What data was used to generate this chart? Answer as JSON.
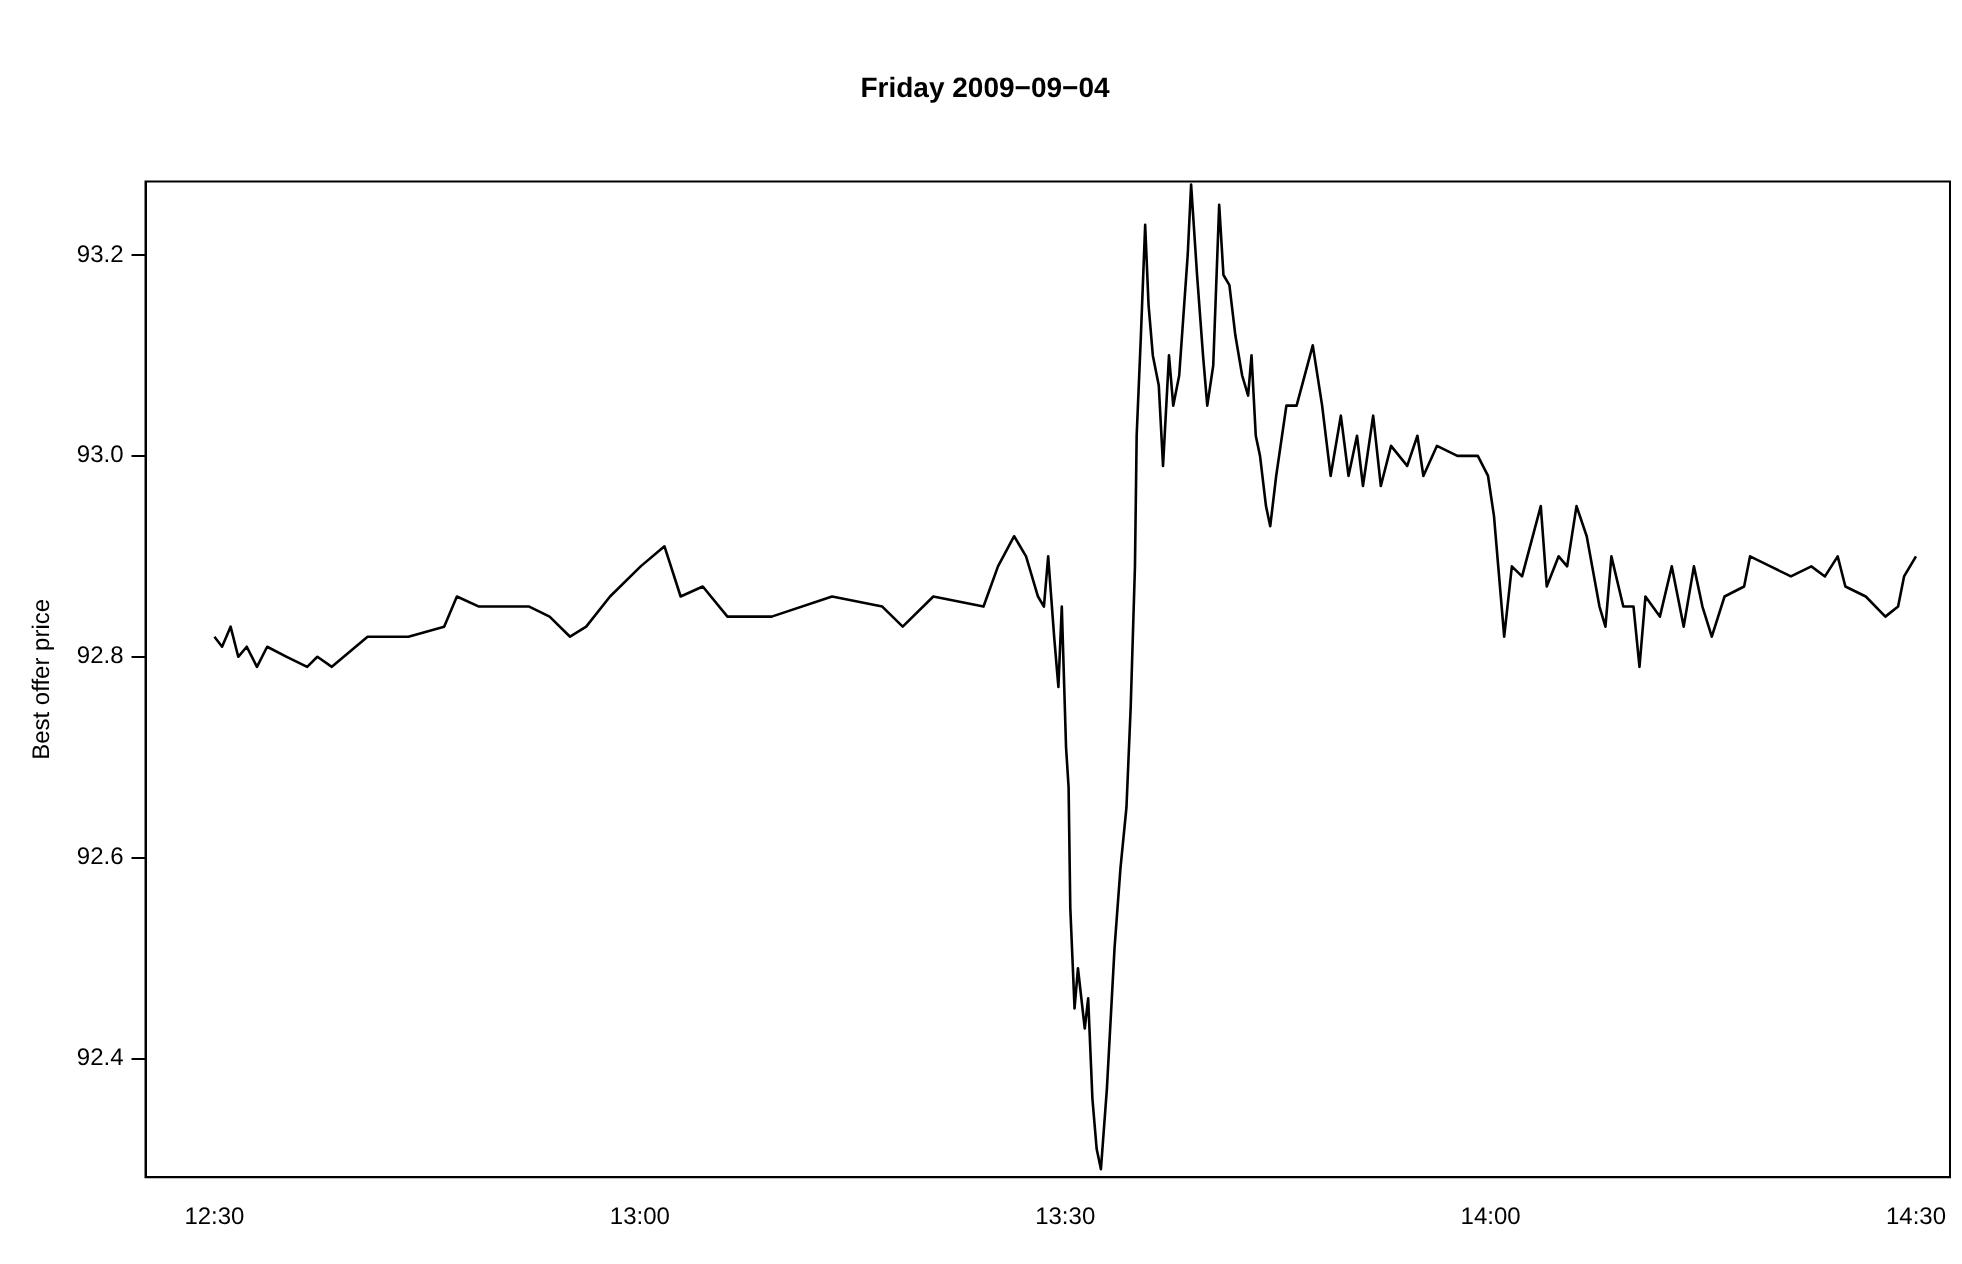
{
  "chart_data": {
    "type": "line",
    "title": "Friday 2009−09−04",
    "ylabel": "Best offer price",
    "x": [
      12.5,
      12.509,
      12.519,
      12.528,
      12.538,
      12.55,
      12.562,
      12.585,
      12.609,
      12.621,
      12.638,
      12.68,
      12.728,
      12.77,
      12.785,
      12.811,
      12.87,
      12.894,
      12.918,
      12.937,
      12.965,
      13.001,
      13.029,
      13.048,
      13.074,
      13.103,
      13.155,
      13.226,
      13.285,
      13.309,
      13.345,
      13.404,
      13.421,
      13.44,
      13.454,
      13.468,
      13.475,
      13.48,
      13.487,
      13.492,
      13.496,
      13.501,
      13.504,
      13.506,
      13.511,
      13.515,
      13.523,
      13.527,
      13.532,
      13.537,
      13.542,
      13.549,
      13.558,
      13.565,
      13.572,
      13.577,
      13.582,
      13.584,
      13.589,
      13.594,
      13.598,
      13.603,
      13.61,
      13.615,
      13.622,
      13.627,
      13.634,
      13.644,
      13.648,
      13.655,
      13.662,
      13.667,
      13.674,
      13.681,
      13.686,
      13.693,
      13.7,
      13.708,
      13.715,
      13.719,
      13.724,
      13.729,
      13.736,
      13.741,
      13.748,
      13.76,
      13.772,
      13.791,
      13.802,
      13.812,
      13.824,
      13.833,
      13.843,
      13.85,
      13.862,
      13.871,
      13.883,
      13.902,
      13.914,
      13.921,
      13.937,
      13.961,
      13.985,
      13.997,
      14.004,
      14.009,
      14.016,
      14.025,
      14.037,
      14.059,
      14.066,
      14.08,
      14.09,
      14.101,
      14.113,
      14.128,
      14.135,
      14.142,
      14.156,
      14.168,
      14.175,
      14.182,
      14.199,
      14.213,
      14.227,
      14.239,
      14.249,
      14.26,
      14.275,
      14.298,
      14.305,
      14.329,
      14.353,
      14.377,
      14.393,
      14.408,
      14.417,
      14.441,
      14.464,
      14.479,
      14.486,
      14.5
    ],
    "values": [
      92.82,
      92.81,
      92.83,
      92.8,
      92.81,
      92.79,
      92.81,
      92.8,
      92.79,
      92.8,
      92.79,
      92.82,
      92.82,
      92.83,
      92.86,
      92.85,
      92.85,
      92.84,
      92.82,
      92.83,
      92.86,
      92.89,
      92.91,
      92.86,
      92.87,
      92.84,
      92.84,
      92.86,
      92.85,
      92.83,
      92.86,
      92.85,
      92.89,
      92.92,
      92.9,
      92.86,
      92.85,
      92.9,
      92.82,
      92.77,
      92.85,
      92.71,
      92.67,
      92.55,
      92.45,
      92.49,
      92.43,
      92.46,
      92.36,
      92.31,
      92.29,
      92.37,
      92.51,
      92.59,
      92.65,
      92.75,
      92.89,
      93.02,
      93.12,
      93.23,
      93.15,
      93.1,
      93.07,
      92.99,
      93.1,
      93.05,
      93.08,
      93.2,
      93.27,
      93.18,
      93.1,
      93.05,
      93.09,
      93.25,
      93.18,
      93.17,
      93.12,
      93.08,
      93.06,
      93.1,
      93.02,
      93.0,
      92.95,
      92.93,
      92.98,
      93.05,
      93.05,
      93.11,
      93.05,
      92.98,
      93.04,
      92.98,
      93.02,
      92.97,
      93.04,
      92.97,
      93.01,
      92.99,
      93.02,
      92.98,
      93.01,
      93.0,
      93.0,
      92.98,
      92.94,
      92.89,
      92.82,
      92.89,
      92.88,
      92.95,
      92.87,
      92.9,
      92.89,
      92.95,
      92.92,
      92.85,
      92.83,
      92.9,
      92.85,
      92.85,
      92.79,
      92.86,
      92.84,
      92.89,
      92.83,
      92.89,
      92.85,
      92.82,
      92.86,
      92.87,
      92.9,
      92.89,
      92.88,
      92.89,
      92.88,
      92.9,
      92.87,
      92.86,
      92.84,
      92.85,
      92.88,
      92.9
    ],
    "color": "#000000",
    "xlim": [
      12.419,
      14.54
    ],
    "ylim": [
      92.282,
      93.273
    ],
    "xticks": [
      {
        "value": 12.5,
        "label": "12:30"
      },
      {
        "value": 13,
        "label": "13:00"
      },
      {
        "value": 13.5,
        "label": "13:30"
      },
      {
        "value": 14,
        "label": "14:00"
      },
      {
        "value": 14.5,
        "label": "14:30"
      }
    ],
    "yticks": [
      92.4,
      92.6,
      92.8,
      {
        "value": 93,
        "label": "93.0"
      },
      93.2
    ],
    "grid": false,
    "legend": false,
    "marker": "none",
    "line_style": "solid"
  }
}
